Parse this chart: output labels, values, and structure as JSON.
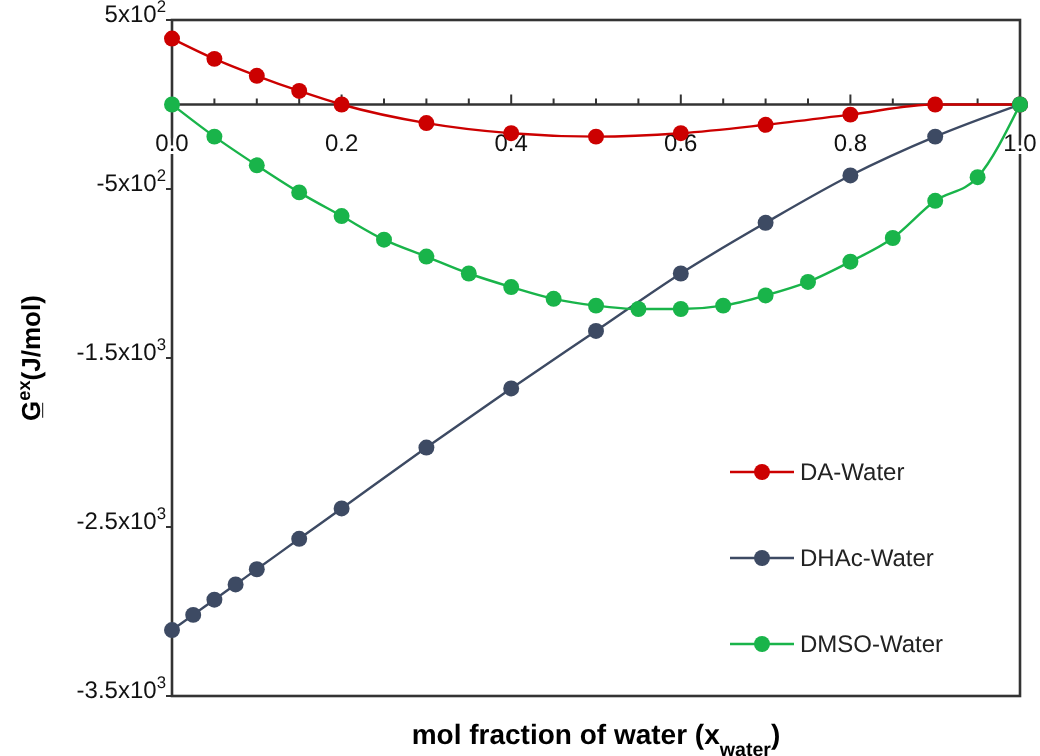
{
  "chart_data": {
    "type": "line",
    "xlabel": "mol fraction of water (x$_{water}$)",
    "ylabel": "G̲$^{ex}$(J/mol)",
    "xlim": [
      0,
      1
    ],
    "ylim": [
      -3500,
      500
    ],
    "xticks": [
      {
        "value": 0,
        "label": "0.0"
      },
      {
        "value": 0.05,
        "label": null
      },
      {
        "value": 0.1,
        "label": null
      },
      {
        "value": 0.15,
        "label": null
      },
      {
        "value": 0.2,
        "label": "0.2"
      },
      {
        "value": 0.25,
        "label": null
      },
      {
        "value": 0.3,
        "label": null
      },
      {
        "value": 0.35,
        "label": null
      },
      {
        "value": 0.4,
        "label": "0.4"
      },
      {
        "value": 0.45,
        "label": null
      },
      {
        "value": 0.5,
        "label": null
      },
      {
        "value": 0.55,
        "label": null
      },
      {
        "value": 0.6,
        "label": "0.6"
      },
      {
        "value": 0.65,
        "label": null
      },
      {
        "value": 0.7,
        "label": null
      },
      {
        "value": 0.75,
        "label": null
      },
      {
        "value": 0.8,
        "label": "0.8"
      },
      {
        "value": 0.85,
        "label": null
      },
      {
        "value": 0.9,
        "label": null
      },
      {
        "value": 0.95,
        "label": null
      },
      {
        "value": 1,
        "label": "1.0"
      }
    ],
    "yticks": [
      {
        "value": 500,
        "label": "5x10$^{2}$"
      },
      {
        "value": -500,
        "label": "-5x10$^{2}$"
      },
      {
        "value": -1500,
        "label": "-1.5x10$^{3}$"
      },
      {
        "value": -2500,
        "label": "-2.5x10$^{3}$"
      },
      {
        "value": -3500,
        "label": "-3.5x10$^{3}$"
      }
    ],
    "marker": "circle",
    "legend": "bottom right",
    "grid": false,
    "series": [
      {
        "name": "DA-Water",
        "color": "#cc0000",
        "x": [
          0,
          0.05,
          0.1,
          0.15,
          0.2,
          0.3,
          0.4,
          0.5,
          0.6,
          0.7,
          0.8,
          0.9,
          1
        ],
        "values": [
          390,
          270,
          170,
          80,
          0,
          -110,
          -170,
          -190,
          -170,
          -120,
          -60,
          0,
          0
        ]
      },
      {
        "name": "DHAc-Water",
        "color": "#3d4a63",
        "x": [
          0,
          0.025,
          0.05,
          0.075,
          0.1,
          0.15,
          0.2,
          0.3,
          0.4,
          0.5,
          0.6,
          0.7,
          0.8,
          0.9,
          1
        ],
        "values": [
          -3110,
          -3020,
          -2930,
          -2840,
          -2750,
          -2570,
          -2390,
          -2030,
          -1680,
          -1340,
          -1000,
          -700,
          -420,
          -190,
          0
        ]
      },
      {
        "name": "DMSO-Water",
        "color": "#19b44a",
        "x": [
          0,
          0.05,
          0.1,
          0.15,
          0.2,
          0.25,
          0.3,
          0.35,
          0.4,
          0.45,
          0.5,
          0.55,
          0.6,
          0.65,
          0.7,
          0.75,
          0.8,
          0.85,
          0.9,
          0.95,
          1
        ],
        "values": [
          0,
          -190,
          -360,
          -520,
          -660,
          -800,
          -900,
          -1000,
          -1080,
          -1150,
          -1190,
          -1210,
          -1210,
          -1190,
          -1130,
          -1050,
          -930,
          -790,
          -570,
          -430,
          0
        ]
      }
    ]
  }
}
